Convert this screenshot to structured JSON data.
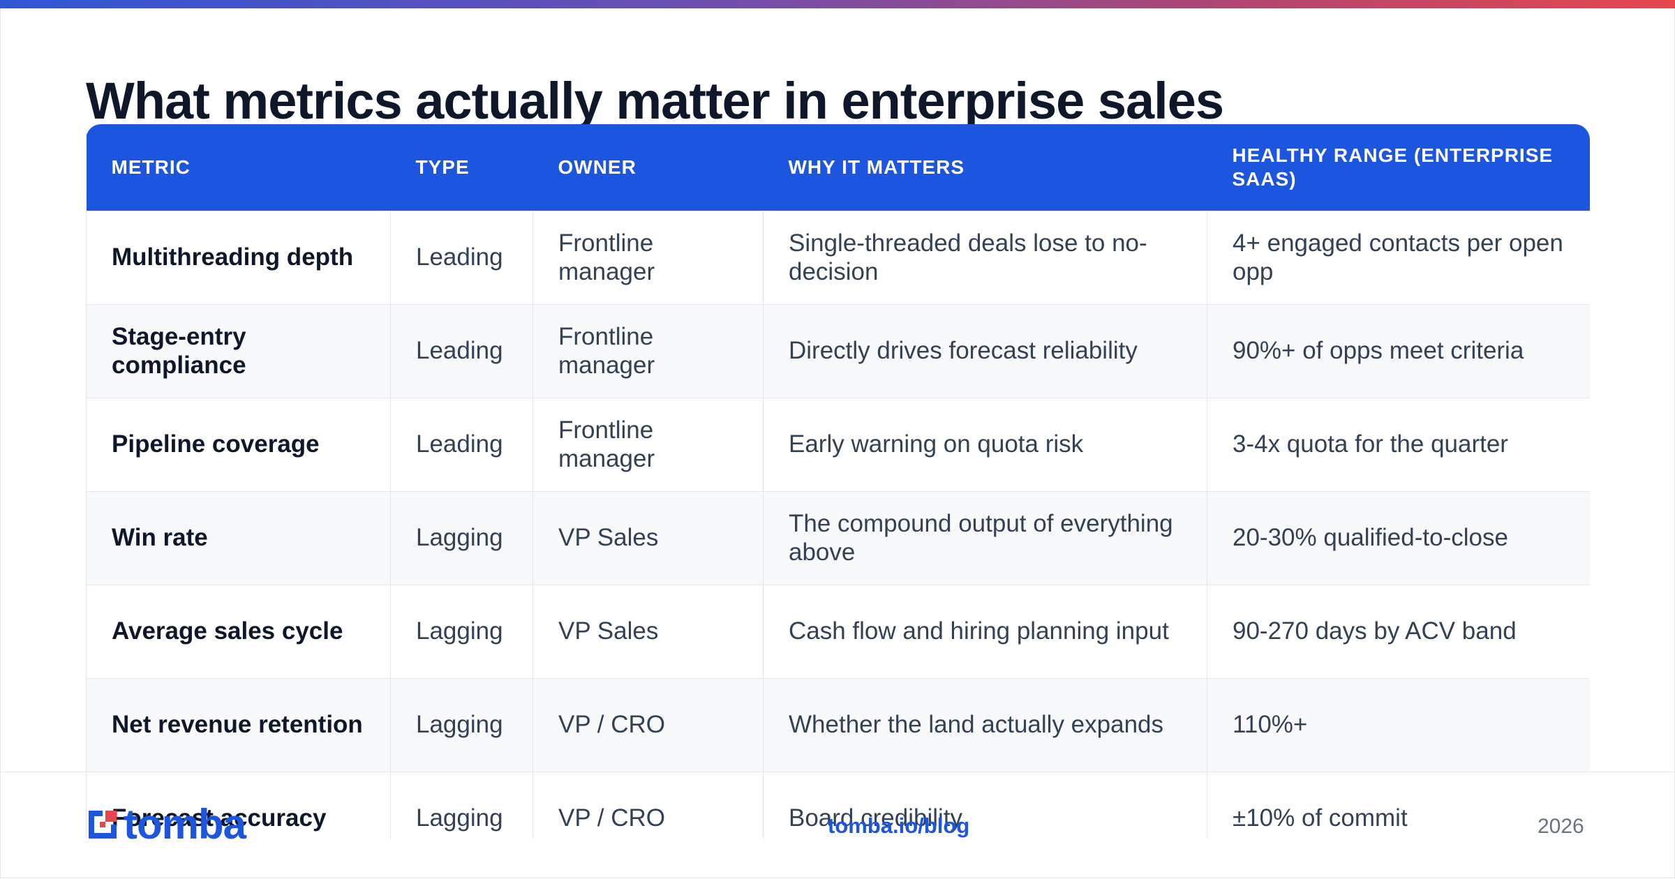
{
  "title": "What metrics actually matter in enterprise sales",
  "table": {
    "headers": [
      "METRIC",
      "TYPE",
      "OWNER",
      "WHY IT MATTERS",
      "HEALTHY RANGE (ENTERPRISE SAAS)"
    ],
    "rows": [
      [
        "Multithreading depth",
        "Leading",
        "Frontline manager",
        "Single-threaded deals lose to no-decision",
        "4+ engaged contacts per open opp"
      ],
      [
        "Stage-entry compliance",
        "Leading",
        "Frontline manager",
        "Directly drives forecast reliability",
        "90%+ of opps meet criteria"
      ],
      [
        "Pipeline coverage",
        "Leading",
        "Frontline manager",
        "Early warning on quota risk",
        "3-4x quota for the quarter"
      ],
      [
        "Win rate",
        "Lagging",
        "VP Sales",
        "The compound output of everything above",
        "20-30% qualified-to-close"
      ],
      [
        "Average sales cycle",
        "Lagging",
        "VP Sales",
        "Cash flow and hiring planning input",
        "90-270 days by ACV band"
      ],
      [
        "Net revenue retention",
        "Lagging",
        "VP / CRO",
        "Whether the land actually expands",
        "110%+"
      ],
      [
        "Forecast accuracy",
        "Lagging",
        "VP / CRO",
        "Board credibility",
        "±10% of commit"
      ]
    ]
  },
  "footer": {
    "logo_text": "tomba",
    "link": "tomba.io/blog",
    "year": "2026"
  },
  "colors": {
    "accent": "#1c55de",
    "logo_red": "#e6474f"
  }
}
